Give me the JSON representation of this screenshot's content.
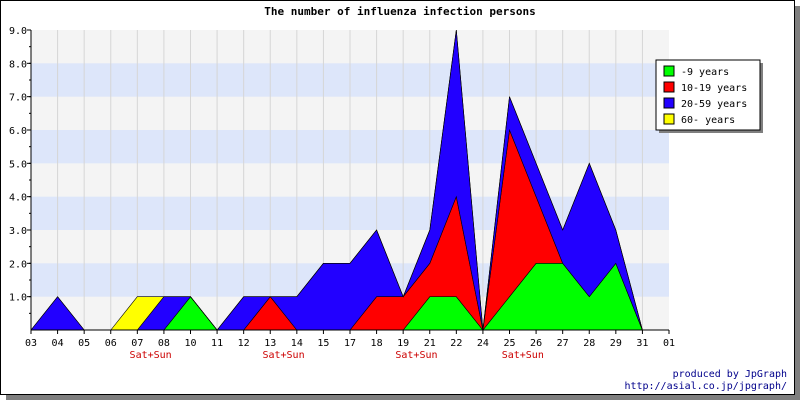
{
  "chart_data": {
    "type": "area",
    "stacked": true,
    "title": "The number of influenza infection persons",
    "categories": [
      "03",
      "04",
      "05",
      "06",
      "07",
      "08",
      "10",
      "11",
      "12",
      "13",
      "14",
      "15",
      "17",
      "18",
      "19",
      "21",
      "22",
      "24",
      "25",
      "26",
      "27",
      "28",
      "29",
      "31",
      "01"
    ],
    "weekend_label": "Sat+Sun",
    "weekend_categories": [
      "07",
      "13",
      "19",
      "25"
    ],
    "ylim": [
      0,
      9
    ],
    "yticks": [
      "1.0",
      "2.0",
      "3.0",
      "4.0",
      "5.0",
      "6.0",
      "7.0",
      "8.0",
      "9.0"
    ],
    "series": [
      {
        "name": "-9 years",
        "color": "#00ff00",
        "values": [
          0,
          0,
          0,
          0,
          0,
          0,
          1,
          0,
          0,
          0,
          0,
          0,
          0,
          0,
          0,
          1,
          1,
          0,
          1,
          2,
          2,
          1,
          2,
          0,
          null
        ]
      },
      {
        "name": "10-19 years",
        "color": "#ff0000",
        "values": [
          0,
          0,
          0,
          0,
          0,
          0,
          0,
          0,
          0,
          1,
          0,
          0,
          0,
          1,
          1,
          1,
          3,
          0,
          5,
          2,
          0,
          0,
          0,
          0,
          null
        ]
      },
      {
        "name": "20-59 years",
        "color": "#2200ff",
        "values": [
          0,
          1,
          0,
          0,
          0,
          1,
          0,
          0,
          1,
          0,
          1,
          2,
          2,
          2,
          0,
          1,
          5,
          0,
          1,
          1,
          1,
          4,
          1,
          0,
          null
        ]
      },
      {
        "name": "60- years",
        "color": "#ffff00",
        "values": [
          0,
          0,
          0,
          0,
          1,
          0,
          0,
          0,
          0,
          0,
          0,
          0,
          0,
          0,
          0,
          0,
          0,
          0,
          0,
          0,
          0,
          0,
          0,
          0,
          null
        ]
      }
    ],
    "legend_position": "top-right",
    "grid": true
  },
  "credit": {
    "line1": "produced by JpGraph",
    "line2": "http://asial.co.jp/jpgraph/"
  }
}
